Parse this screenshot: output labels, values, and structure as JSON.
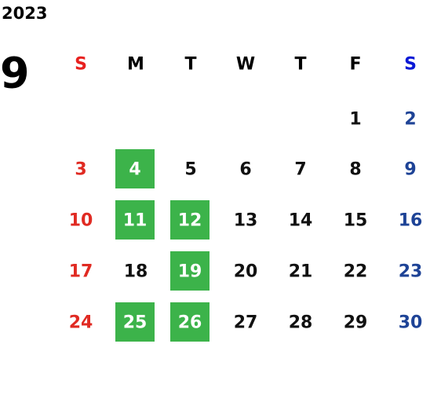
{
  "year": "2023",
  "month": "9",
  "weekdays": [
    "S",
    "M",
    "T",
    "W",
    "T",
    "F",
    "S"
  ],
  "weekday_colors": [
    "#e8211f",
    "#000000",
    "#000000",
    "#000000",
    "#000000",
    "#000000",
    "#0a19d6"
  ],
  "day_colors": [
    "#e02a22",
    "#111111",
    "#111111",
    "#111111",
    "#111111",
    "#111111",
    "#1e4396"
  ],
  "highlight_color": "#3cb34a",
  "weeks": [
    [
      null,
      null,
      null,
      null,
      null,
      {
        "day": 1,
        "highlight": false
      },
      {
        "day": 2,
        "highlight": false
      }
    ],
    [
      {
        "day": 3,
        "highlight": false
      },
      {
        "day": 4,
        "highlight": true
      },
      {
        "day": 5,
        "highlight": false
      },
      {
        "day": 6,
        "highlight": false
      },
      {
        "day": 7,
        "highlight": false
      },
      {
        "day": 8,
        "highlight": false
      },
      {
        "day": 9,
        "highlight": false
      }
    ],
    [
      {
        "day": 10,
        "highlight": false
      },
      {
        "day": 11,
        "highlight": true
      },
      {
        "day": 12,
        "highlight": true
      },
      {
        "day": 13,
        "highlight": false
      },
      {
        "day": 14,
        "highlight": false
      },
      {
        "day": 15,
        "highlight": false
      },
      {
        "day": 16,
        "highlight": false
      }
    ],
    [
      {
        "day": 17,
        "highlight": false
      },
      {
        "day": 18,
        "highlight": false
      },
      {
        "day": 19,
        "highlight": true
      },
      {
        "day": 20,
        "highlight": false
      },
      {
        "day": 21,
        "highlight": false
      },
      {
        "day": 22,
        "highlight": false
      },
      {
        "day": 23,
        "highlight": false
      }
    ],
    [
      {
        "day": 24,
        "highlight": false
      },
      {
        "day": 25,
        "highlight": true
      },
      {
        "day": 26,
        "highlight": true
      },
      {
        "day": 27,
        "highlight": false
      },
      {
        "day": 28,
        "highlight": false
      },
      {
        "day": 29,
        "highlight": false
      },
      {
        "day": 30,
        "highlight": false
      }
    ]
  ]
}
